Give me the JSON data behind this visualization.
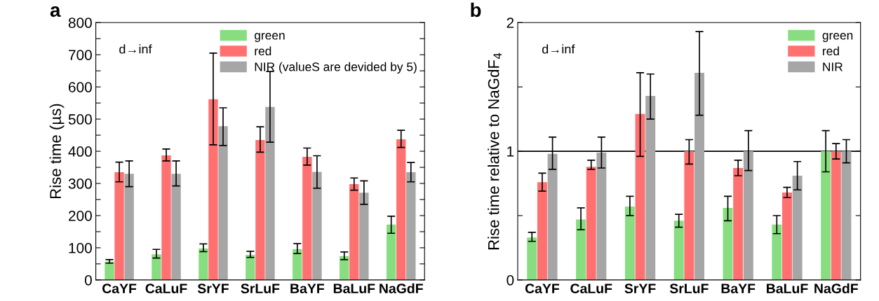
{
  "chart_data": [
    {
      "type": "bar",
      "title": "a",
      "ylabel": "Rise time (µs)",
      "annotations": [
        "d→inf"
      ],
      "categories": [
        "CaYF",
        "CaLuF",
        "SrYF",
        "SrLuF",
        "BaYF",
        "BaLuF",
        "NaGdF"
      ],
      "ylim": [
        0,
        800
      ],
      "yticks": [
        0,
        {
          "value": 50,
          "label": null
        },
        100,
        {
          "value": 150,
          "label": null
        },
        200,
        {
          "value": 250,
          "label": null
        },
        300,
        {
          "value": 350,
          "label": null
        },
        400,
        {
          "value": 450,
          "label": null
        },
        500,
        {
          "value": 550,
          "label": null
        },
        600,
        {
          "value": 650,
          "label": null
        },
        700,
        {
          "value": 750,
          "label": null
        },
        800
      ],
      "grid": false,
      "legend": "top right",
      "series": [
        {
          "name": "green",
          "color": "#88dd80",
          "values": [
            57,
            80,
            98,
            78,
            96,
            74,
            172
          ],
          "errors": [
            [
              52,
              63
            ],
            [
              68,
              95
            ],
            [
              88,
              112
            ],
            [
              70,
              89
            ],
            [
              82,
              113
            ],
            [
              63,
              87
            ],
            [
              145,
              198
            ]
          ]
        },
        {
          "name": "red",
          "color": "#ff7070",
          "values": [
            335,
            387,
            562,
            435,
            383,
            298,
            437
          ],
          "errors": [
            [
              305,
              366
            ],
            [
              370,
              407
            ],
            [
              420,
              705
            ],
            [
              397,
              476
            ],
            [
              357,
              410
            ],
            [
              279,
              317
            ],
            [
              412,
              465
            ]
          ]
        },
        {
          "name": "NIR (valueS are devided by 5)",
          "color": "#a6a6a6",
          "values": [
            330,
            330,
            478,
            538,
            336,
            271,
            335
          ],
          "errors": [
            [
              290,
              370
            ],
            [
              292,
              370
            ],
            [
              418,
              535
            ],
            [
              428,
              648
            ],
            [
              285,
              386
            ],
            [
              235,
              308
            ],
            [
              305,
              365
            ]
          ]
        }
      ]
    },
    {
      "type": "bar",
      "title": "b",
      "ylabel": "Rise time relative to NaGdF$_{4}$",
      "annotations": [
        "d→inf"
      ],
      "categories": [
        "CaYF",
        "CaLuF",
        "SrYF",
        "SrLuF",
        "BaYF",
        "BaLuF",
        "NaGdF"
      ],
      "ylim": [
        0,
        2
      ],
      "yticks": [
        0,
        {
          "value": 0.5,
          "label": null
        },
        1,
        {
          "value": 1.5,
          "label": null
        },
        2
      ],
      "grid": false,
      "legend": "top right",
      "ref_lines": [
        {
          "axis": "y",
          "value": 1,
          "color": "#000000"
        }
      ],
      "series": [
        {
          "name": "green",
          "color": "#88dd80",
          "values": [
            0.33,
            0.47,
            0.57,
            0.46,
            0.56,
            0.43,
            1.0
          ],
          "errors": [
            [
              0.3,
              0.37
            ],
            [
              0.39,
              0.56
            ],
            [
              0.5,
              0.65
            ],
            [
              0.41,
              0.51
            ],
            [
              0.46,
              0.65
            ],
            [
              0.36,
              0.5
            ],
            [
              0.84,
              1.16
            ]
          ]
        },
        {
          "name": "red",
          "color": "#ff7070",
          "values": [
            0.76,
            0.88,
            1.29,
            1.0,
            0.87,
            0.68,
            1.0
          ],
          "errors": [
            [
              0.69,
              0.83
            ],
            [
              0.86,
              0.93
            ],
            [
              0.96,
              1.61
            ],
            [
              0.9,
              1.09
            ],
            [
              0.81,
              0.93
            ],
            [
              0.64,
              0.72
            ],
            [
              0.94,
              1.06
            ]
          ]
        },
        {
          "name": "NIR",
          "color": "#a6a6a6",
          "values": [
            0.98,
            0.99,
            1.43,
            1.61,
            1.0,
            0.81,
            1.0
          ],
          "errors": [
            [
              0.86,
              1.11
            ],
            [
              0.87,
              1.11
            ],
            [
              1.25,
              1.6
            ],
            [
              1.28,
              1.93
            ],
            [
              0.85,
              1.16
            ],
            [
              0.7,
              0.92
            ],
            [
              0.91,
              1.09
            ]
          ]
        }
      ]
    }
  ]
}
